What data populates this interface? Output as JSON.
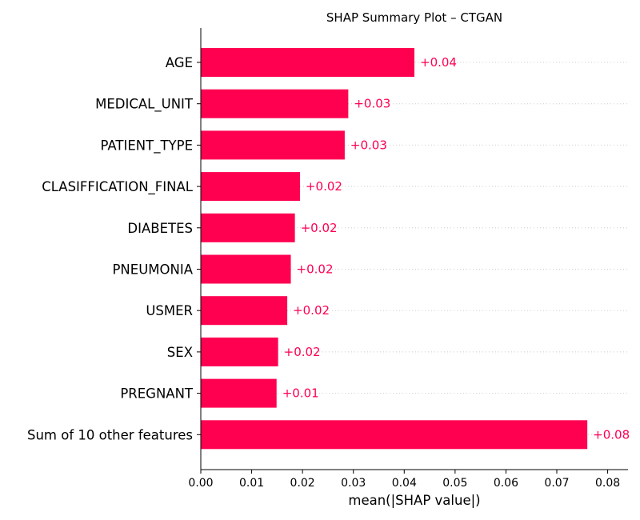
{
  "chart_data": {
    "type": "bar",
    "orientation": "horizontal",
    "title": "SHAP Summary Plot – CTGAN",
    "xlabel": "mean(|SHAP value|)",
    "ylabel": "",
    "categories": [
      "AGE",
      "MEDICAL_UNIT",
      "PATIENT_TYPE",
      "CLASIFFICATION_FINAL",
      "DIABETES",
      "PNEUMONIA",
      "USMER",
      "SEX",
      "PREGNANT",
      "Sum of 10 other features"
    ],
    "values": [
      0.042,
      0.029,
      0.0283,
      0.0195,
      0.0185,
      0.0177,
      0.017,
      0.0152,
      0.0149,
      0.076
    ],
    "value_labels": [
      "+0.04",
      "+0.03",
      "+0.03",
      "+0.02",
      "+0.02",
      "+0.02",
      "+0.02",
      "+0.02",
      "+0.01",
      "+0.08"
    ],
    "xlim": [
      0,
      0.084
    ],
    "xticks": [
      0,
      0.01,
      0.02,
      0.03,
      0.04,
      0.05,
      0.06,
      0.07,
      0.08
    ],
    "xtick_labels": [
      "0.00",
      "0.01",
      "0.02",
      "0.03",
      "0.04",
      "0.05",
      "0.06",
      "0.07",
      "0.08"
    ],
    "grid": "dotted horizontal row guides",
    "bar_color": "#ff0051",
    "label_color": "#ff0051",
    "axis_color": "#000000",
    "grid_color": "#cccccc"
  }
}
